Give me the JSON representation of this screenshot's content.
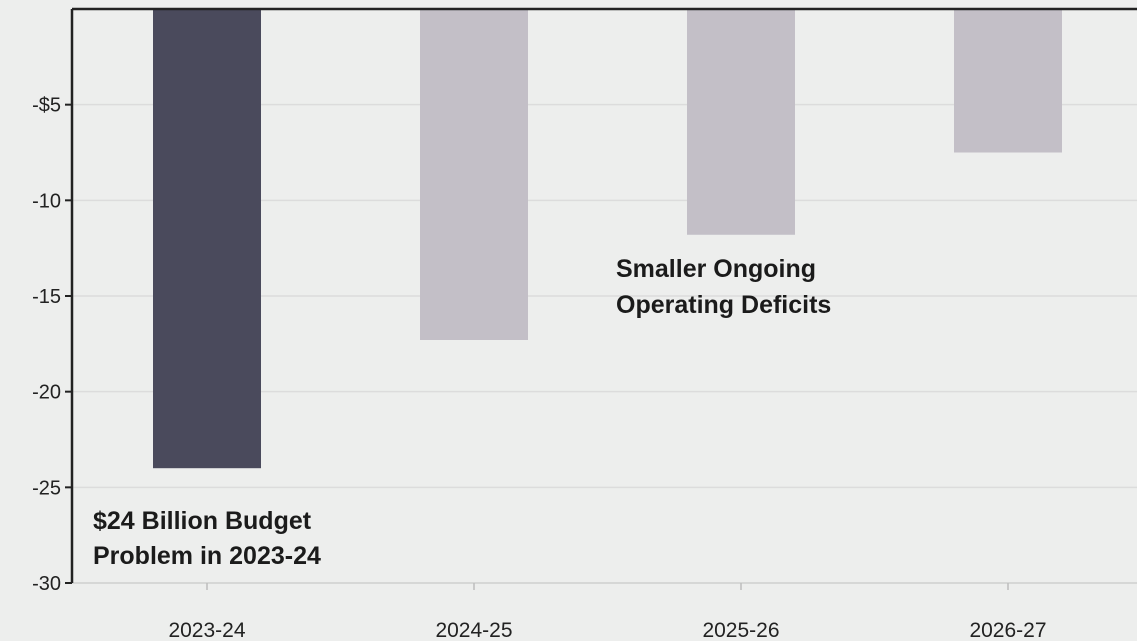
{
  "chart_data": {
    "type": "bar",
    "title": "",
    "xlabel": "",
    "ylabel": "",
    "categories": [
      "2023-24",
      "2024-25",
      "2025-26",
      "2026-27"
    ],
    "values": [
      -24,
      -17.3,
      -11.8,
      -7.5
    ],
    "bar_colors": [
      "#4a4a5c",
      "#c3bfc7",
      "#c3bfc7",
      "#c3bfc7"
    ],
    "ylim": [
      -30,
      0
    ],
    "yticks": [
      -30,
      -25,
      -20,
      -15,
      -10,
      -5
    ],
    "ytick_labels": [
      "-30",
      "-25",
      "-20",
      "-15",
      "-10",
      "-$5"
    ],
    "grid": true,
    "annotations": [
      {
        "lines": [
          "$24 Billion Budget",
          "Problem in 2023-24"
        ]
      },
      {
        "lines": [
          "Smaller Ongoing",
          "Operating Deficits"
        ]
      }
    ]
  }
}
